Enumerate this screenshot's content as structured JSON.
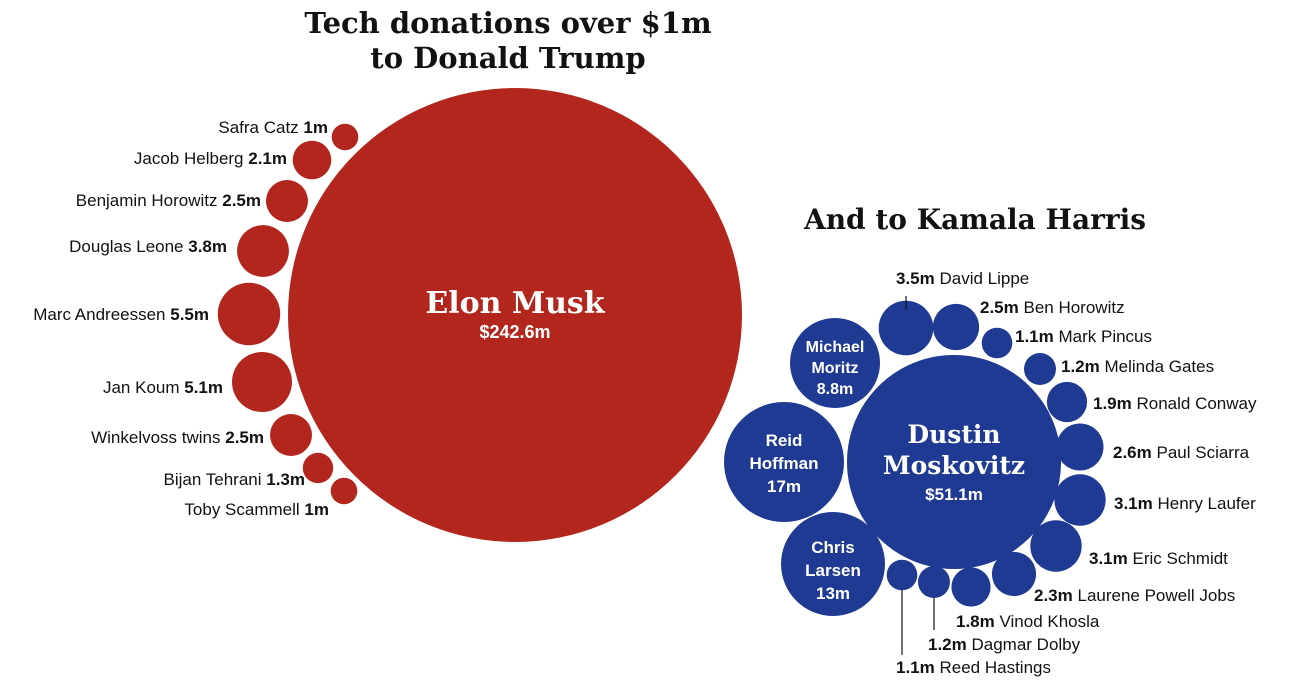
{
  "chart_data": [
    {
      "type": "bubble",
      "title_lines": [
        "Tech donations over $1m",
        "to Donald Trump"
      ],
      "color": "#b3261e",
      "center": {
        "name": "Elon Musk",
        "amount_label": "$242.6m",
        "value": 242.6
      },
      "donors": [
        {
          "name": "Safra Catz",
          "amount_label": "1m",
          "value": 1.0
        },
        {
          "name": "Jacob Helberg",
          "amount_label": "2.1m",
          "value": 2.1
        },
        {
          "name": "Benjamin Horowitz",
          "amount_label": "2.5m",
          "value": 2.5
        },
        {
          "name": "Douglas Leone",
          "amount_label": "3.8m",
          "value": 3.8
        },
        {
          "name": "Marc Andreessen",
          "amount_label": "5.5m",
          "value": 5.5
        },
        {
          "name": "Jan Koum",
          "amount_label": "5.1m",
          "value": 5.1
        },
        {
          "name": "Winkelvoss twins",
          "amount_label": "2.5m",
          "value": 2.5
        },
        {
          "name": "Bijan Tehrani",
          "amount_label": "1.3m",
          "value": 1.3
        },
        {
          "name": "Toby Scammell",
          "amount_label": "1m",
          "value": 1.0
        }
      ]
    },
    {
      "type": "bubble",
      "title_lines": [
        "And to Kamala Harris"
      ],
      "color": "#1f3a93",
      "center": {
        "name_lines": [
          "Dustin",
          "Moskovitz"
        ],
        "amount_label": "$51.1m",
        "value": 51.1
      },
      "inside_donors": [
        {
          "name_lines": [
            "Michael",
            "Moritz"
          ],
          "amount_label": "8.8m",
          "value": 8.8
        },
        {
          "name_lines": [
            "Reid",
            "Hoffman"
          ],
          "amount_label": "17m",
          "value": 17
        },
        {
          "name_lines": [
            "Chris",
            "Larsen"
          ],
          "amount_label": "13m",
          "value": 13
        }
      ],
      "donors": [
        {
          "name": "David Lippe",
          "amount_label": "3.5m",
          "value": 3.5
        },
        {
          "name": "Ben Horowitz",
          "amount_label": "2.5m",
          "value": 2.5
        },
        {
          "name": "Mark Pincus",
          "amount_label": "1.1m",
          "value": 1.1
        },
        {
          "name": "Melinda Gates",
          "amount_label": "1.2m",
          "value": 1.2
        },
        {
          "name": "Ronald Conway",
          "amount_label": "1.9m",
          "value": 1.9
        },
        {
          "name": "Paul Sciarra",
          "amount_label": "2.6m",
          "value": 2.6
        },
        {
          "name": "Henry Laufer",
          "amount_label": "3.1m",
          "value": 3.1
        },
        {
          "name": "Eric Schmidt",
          "amount_label": "3.1m",
          "value": 3.1
        },
        {
          "name": "Laurene Powell Jobs",
          "amount_label": "2.3m",
          "value": 2.3
        },
        {
          "name": "Vinod Khosla",
          "amount_label": "1.8m",
          "value": 1.8
        },
        {
          "name": "Dagmar Dolby",
          "amount_label": "1.2m",
          "value": 1.2
        },
        {
          "name": "Reed Hastings",
          "amount_label": "1.1m",
          "value": 1.1
        }
      ]
    }
  ]
}
